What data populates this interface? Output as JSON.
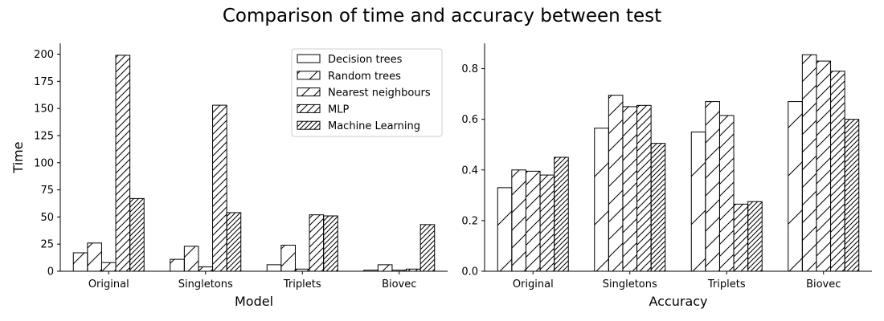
{
  "figure": {
    "title": "Comparison of time and accuracy between test"
  },
  "chart_data": [
    {
      "type": "bar",
      "title": "",
      "xlabel": "Model",
      "ylabel": "Time",
      "categories": [
        "Original",
        "Singletons",
        "Triplets",
        "Biovec"
      ],
      "ylim": [
        0,
        210
      ],
      "yticks": [
        0,
        25,
        50,
        75,
        100,
        125,
        150,
        175,
        200
      ],
      "grid": false,
      "legend_position": "top-right",
      "series": [
        {
          "name": "Decision trees",
          "values": [
            17,
            11,
            6,
            1
          ]
        },
        {
          "name": "Random trees",
          "values": [
            26,
            23,
            24,
            6
          ]
        },
        {
          "name": "Nearest neighbours",
          "values": [
            8,
            4,
            2,
            1
          ]
        },
        {
          "name": "MLP",
          "values": [
            199,
            153,
            52,
            2
          ]
        },
        {
          "name": "Machine Learning",
          "values": [
            67,
            54,
            51,
            43
          ]
        }
      ]
    },
    {
      "type": "bar",
      "title": "",
      "xlabel": "Accuracy",
      "ylabel": "",
      "categories": [
        "Original",
        "Singletons",
        "Triplets",
        "Biovec"
      ],
      "ylim": [
        0,
        0.9
      ],
      "yticks": [
        0.0,
        0.2,
        0.4,
        0.6,
        0.8
      ],
      "grid": false,
      "series": [
        {
          "name": "Decision trees",
          "values": [
            0.33,
            0.565,
            0.55,
            0.67
          ]
        },
        {
          "name": "Random trees",
          "values": [
            0.4,
            0.695,
            0.67,
            0.855
          ]
        },
        {
          "name": "Nearest neighbours",
          "values": [
            0.395,
            0.65,
            0.615,
            0.83
          ]
        },
        {
          "name": "MLP",
          "values": [
            0.38,
            0.655,
            0.265,
            0.79
          ]
        },
        {
          "name": "Machine Learning",
          "values": [
            0.45,
            0.505,
            0.275,
            0.6
          ]
        }
      ]
    }
  ]
}
